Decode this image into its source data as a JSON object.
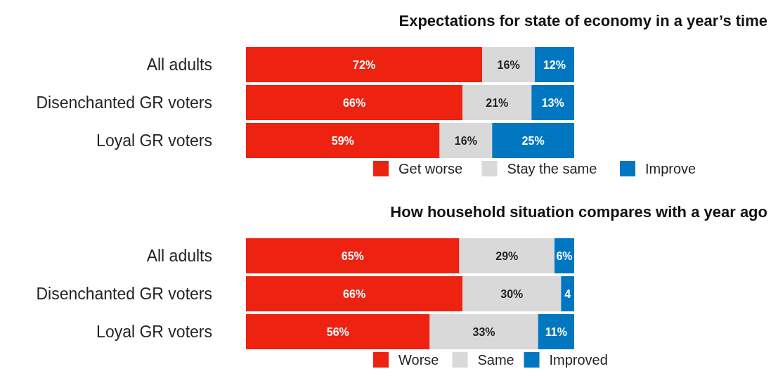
{
  "chart_data": [
    {
      "type": "bar",
      "title": "Expectations for state of economy in a year’s time",
      "orientation": "horizontal",
      "stacked": true,
      "categories": [
        "All adults",
        "Disenchanted GR voters",
        "Loyal GR voters"
      ],
      "legend": "bottom",
      "series": [
        {
          "name": "Get worse",
          "color": "#ee2211",
          "values": [
            72,
            66,
            59
          ],
          "value_labels": [
            "72%",
            "66%",
            "59%"
          ]
        },
        {
          "name": "Stay the same",
          "color": "#d9d9d9",
          "values": [
            16,
            21,
            16
          ],
          "value_labels": [
            "16%",
            "21%",
            "16%"
          ]
        },
        {
          "name": "Improve",
          "color": "#0077c0",
          "values": [
            12,
            13,
            25
          ],
          "value_labels": [
            "12%",
            "13%",
            "25%"
          ]
        }
      ]
    },
    {
      "type": "bar",
      "title": "How household situation compares with a year ago",
      "orientation": "horizontal",
      "stacked": true,
      "categories": [
        "All adults",
        "Disenchanted GR voters",
        "Loyal GR voters"
      ],
      "legend": "bottom",
      "series": [
        {
          "name": "Worse",
          "color": "#ee2211",
          "values": [
            65,
            66,
            56
          ],
          "value_labels": [
            "65%",
            "66%",
            "56%"
          ]
        },
        {
          "name": "Same",
          "color": "#d9d9d9",
          "values": [
            29,
            30,
            33
          ],
          "value_labels": [
            "29%",
            "30%",
            "33%"
          ]
        },
        {
          "name": "Improved",
          "color": "#0077c0",
          "values": [
            6,
            4,
            11
          ],
          "value_labels": [
            "6%",
            "4",
            "11%"
          ]
        }
      ]
    }
  ]
}
